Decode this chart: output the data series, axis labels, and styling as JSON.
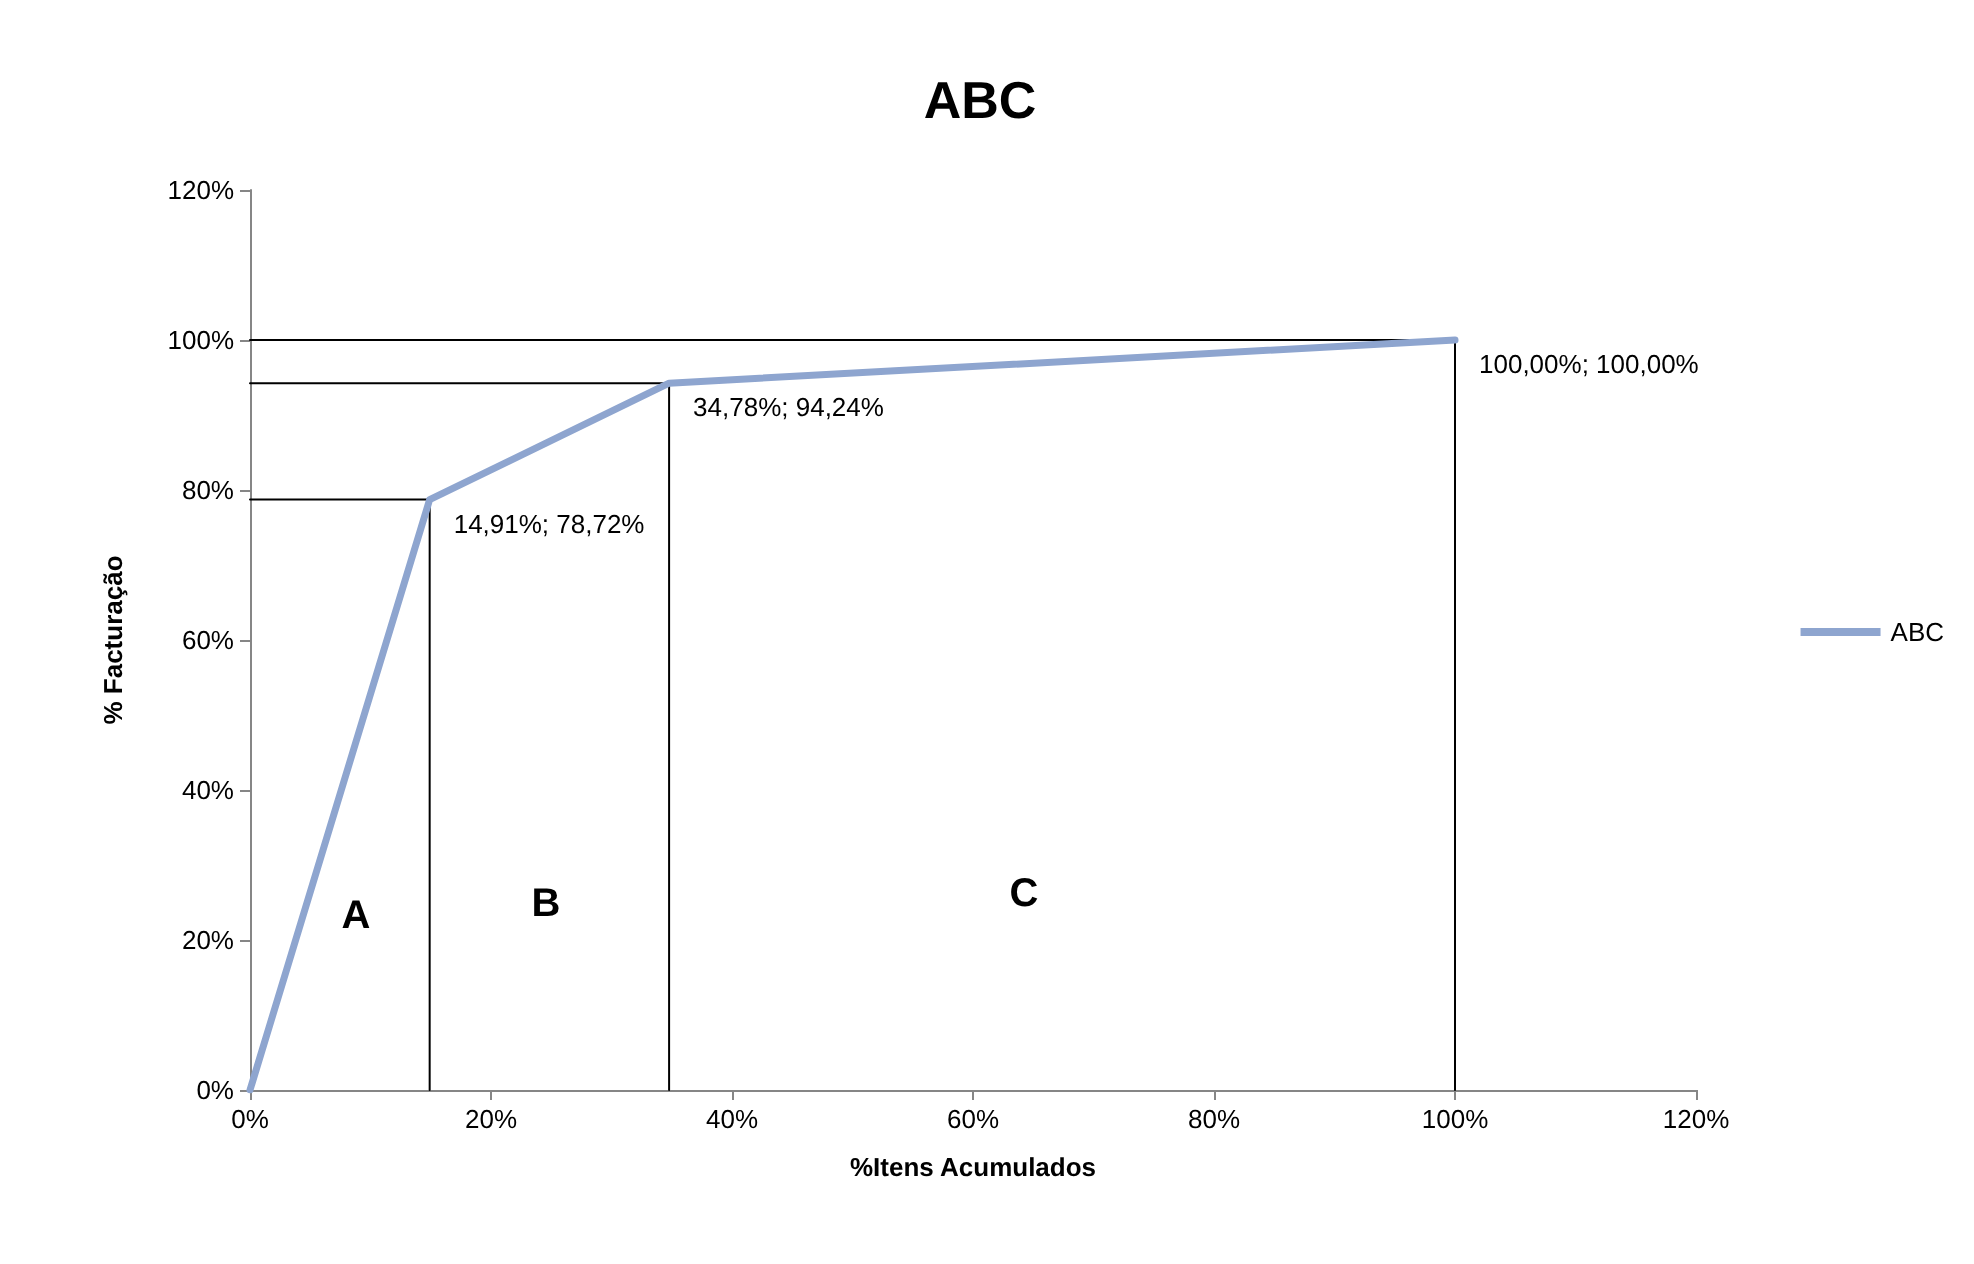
{
  "chart_data": {
    "type": "line",
    "title": "ABC",
    "xlabel": "%Itens Acumulados",
    "ylabel": "% Facturação",
    "xlim": [
      0,
      120
    ],
    "ylim": [
      0,
      120
    ],
    "xticks": [
      {
        "value": 0,
        "label": "0%"
      },
      {
        "value": 20,
        "label": "20%"
      },
      {
        "value": 40,
        "label": "40%"
      },
      {
        "value": 60,
        "label": "60%"
      },
      {
        "value": 80,
        "label": "80%"
      },
      {
        "value": 100,
        "label": "100%"
      },
      {
        "value": 120,
        "label": "120%"
      }
    ],
    "yticks": [
      {
        "value": 0,
        "label": "0%"
      },
      {
        "value": 20,
        "label": "20%"
      },
      {
        "value": 40,
        "label": "40%"
      },
      {
        "value": 60,
        "label": "60%"
      },
      {
        "value": 80,
        "label": "80%"
      },
      {
        "value": 100,
        "label": "100%"
      },
      {
        "value": 120,
        "label": "120%"
      }
    ],
    "grid": false,
    "legend": "right",
    "marker": "none",
    "line_style": "solid",
    "series": [
      {
        "color": "#000000",
        "x": [
          0,
          14.91,
          14.91
        ],
        "values": [
          78.72,
          78.72,
          0
        ]
      },
      {
        "color": "#000000",
        "x": [
          0,
          34.78,
          34.78
        ],
        "values": [
          94.24,
          94.24,
          0
        ]
      },
      {
        "color": "#000000",
        "x": [
          0,
          100,
          100
        ],
        "values": [
          100,
          100,
          0
        ]
      },
      {
        "name": "ABC",
        "color": "#8ea5cf",
        "x": [
          0,
          14.91,
          34.78,
          100
        ],
        "values": [
          0,
          78.72,
          94.24,
          100
        ],
        "value_labels": [
          null,
          "14,91%; 78,72%",
          "34,78%; 94,24%",
          "100,00%; 100,00%"
        ]
      }
    ],
    "annotations": [
      "A",
      "B",
      "C"
    ]
  }
}
